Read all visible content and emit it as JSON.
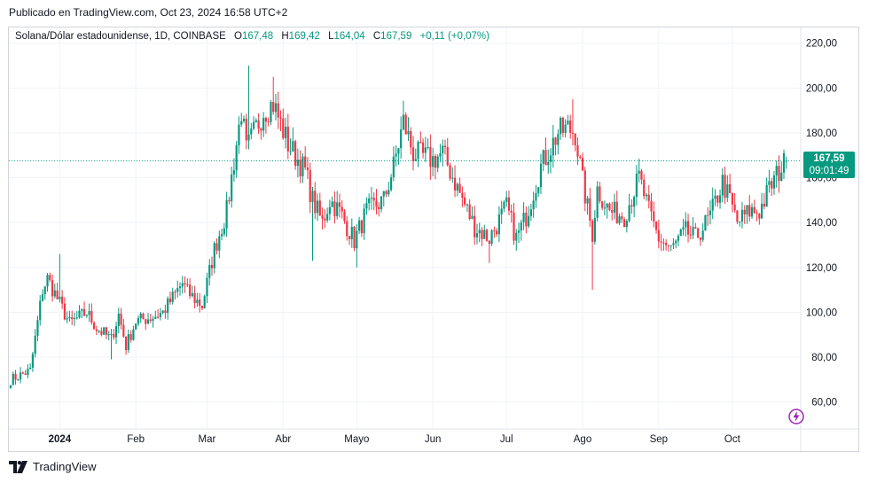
{
  "header": {
    "published": "Publicado en TradingView.com, Oct 23, 2024 16:58 UTC+2"
  },
  "legend": {
    "symbol": "Solana/Dólar estadounidense, 1D, COINBASE",
    "open_label": "O",
    "open": "167,48",
    "high_label": "H",
    "high": "169,42",
    "low_label": "L",
    "low": "164,04",
    "close_label": "C",
    "close": "167,59",
    "change": "+0,11 (+0,07%)"
  },
  "price_tag": {
    "price": "167,59",
    "countdown": "09:01:49"
  },
  "brand": {
    "name": "TradingView"
  },
  "icons": {
    "flash": "flash-icon",
    "logo": "tradingview-logo-icon"
  },
  "colors": {
    "up": "#089981",
    "down": "#f23645",
    "grid": "#f0f3fa",
    "axis_text": "#131722"
  },
  "chart_data": {
    "type": "candlestick",
    "x_axis": {
      "labels": [
        "2024",
        "Feb",
        "Mar",
        "Abr",
        "Mayo",
        "Jun",
        "Jul",
        "Ago",
        "Sep",
        "Oct"
      ],
      "label_dates": [
        "2024-01-01",
        "2024-02-01",
        "2024-03-01",
        "2024-04-01",
        "2024-05-01",
        "2024-06-01",
        "2024-07-01",
        "2024-08-01",
        "2024-09-01",
        "2024-10-01"
      ],
      "range": [
        "2023-12-12",
        "2024-11-04"
      ]
    },
    "y_axis": {
      "ticks": [
        60,
        80,
        100,
        120,
        140,
        160,
        180,
        200,
        220
      ],
      "tick_labels": [
        "60,00",
        "80,00",
        "100,00",
        "120,00",
        "140,00",
        "160,00",
        "180,00",
        "200,00",
        "220,00"
      ],
      "range": [
        48,
        227
      ]
    },
    "grid": true,
    "last_price": 167.59,
    "start_date": "2023-12-12",
    "end_date": "2024-10-23",
    "close_path": [
      [
        "2023-12-12",
        70
      ],
      [
        "2023-12-20",
        74
      ],
      [
        "2023-12-25",
        110
      ],
      [
        "2023-12-27",
        115
      ],
      [
        "2024-01-05",
        95
      ],
      [
        "2024-01-12",
        100
      ],
      [
        "2024-01-16",
        93
      ],
      [
        "2024-01-22",
        88
      ],
      [
        "2024-01-25",
        99
      ],
      [
        "2024-01-28",
        85
      ],
      [
        "2024-02-01",
        96
      ],
      [
        "2024-02-08",
        98
      ],
      [
        "2024-02-12",
        100
      ],
      [
        "2024-02-20",
        113
      ],
      [
        "2024-02-22",
        109
      ],
      [
        "2024-02-28",
        103
      ],
      [
        "2024-03-04",
        128
      ],
      [
        "2024-03-09",
        145
      ],
      [
        "2024-03-15",
        190
      ],
      [
        "2024-03-17",
        172
      ],
      [
        "2024-03-24",
        190
      ],
      [
        "2024-03-28",
        193
      ],
      [
        "2024-04-03",
        175
      ],
      [
        "2024-04-10",
        163
      ],
      [
        "2024-04-13",
        150
      ],
      [
        "2024-04-17",
        140
      ],
      [
        "2024-04-20",
        150
      ],
      [
        "2024-04-24",
        145
      ],
      [
        "2024-04-30",
        132
      ],
      [
        "2024-05-05",
        145
      ],
      [
        "2024-05-12",
        150
      ],
      [
        "2024-05-16",
        165
      ],
      [
        "2024-05-20",
        185
      ],
      [
        "2024-05-24",
        171
      ],
      [
        "2024-06-01",
        168
      ],
      [
        "2024-06-05",
        171
      ],
      [
        "2024-06-10",
        158
      ],
      [
        "2024-06-18",
        138
      ],
      [
        "2024-06-24",
        133
      ],
      [
        "2024-07-01",
        147
      ],
      [
        "2024-07-05",
        133
      ],
      [
        "2024-07-09",
        143
      ],
      [
        "2024-07-15",
        165
      ],
      [
        "2024-07-22",
        180
      ],
      [
        "2024-07-26",
        182
      ],
      [
        "2024-07-29",
        180
      ],
      [
        "2024-08-01",
        158
      ],
      [
        "2024-08-05",
        135
      ],
      [
        "2024-08-07",
        155
      ],
      [
        "2024-08-12",
        145
      ],
      [
        "2024-08-18",
        143
      ],
      [
        "2024-08-24",
        160
      ],
      [
        "2024-08-28",
        145
      ],
      [
        "2024-09-01",
        133
      ],
      [
        "2024-09-06",
        128
      ],
      [
        "2024-09-12",
        136
      ],
      [
        "2024-09-16",
        133
      ],
      [
        "2024-09-22",
        143
      ],
      [
        "2024-09-27",
        158
      ],
      [
        "2024-09-30",
        150
      ],
      [
        "2024-10-03",
        140
      ],
      [
        "2024-10-08",
        145
      ],
      [
        "2024-10-12",
        145
      ],
      [
        "2024-10-16",
        155
      ],
      [
        "2024-10-20",
        163
      ],
      [
        "2024-10-23",
        167.59
      ]
    ],
    "notable_wicks": [
      [
        "2024-03-18",
        210
      ],
      [
        "2024-03-28",
        205
      ],
      [
        "2024-05-21",
        188
      ],
      [
        "2024-07-28",
        195
      ],
      [
        "2024-08-05",
        110
      ],
      [
        "2024-01-01",
        126
      ],
      [
        "2024-01-22",
        79
      ],
      [
        "2024-04-13",
        123
      ],
      [
        "2024-05-01",
        120
      ],
      [
        "2024-06-24",
        122
      ],
      [
        "2024-03-01",
        111
      ]
    ]
  }
}
